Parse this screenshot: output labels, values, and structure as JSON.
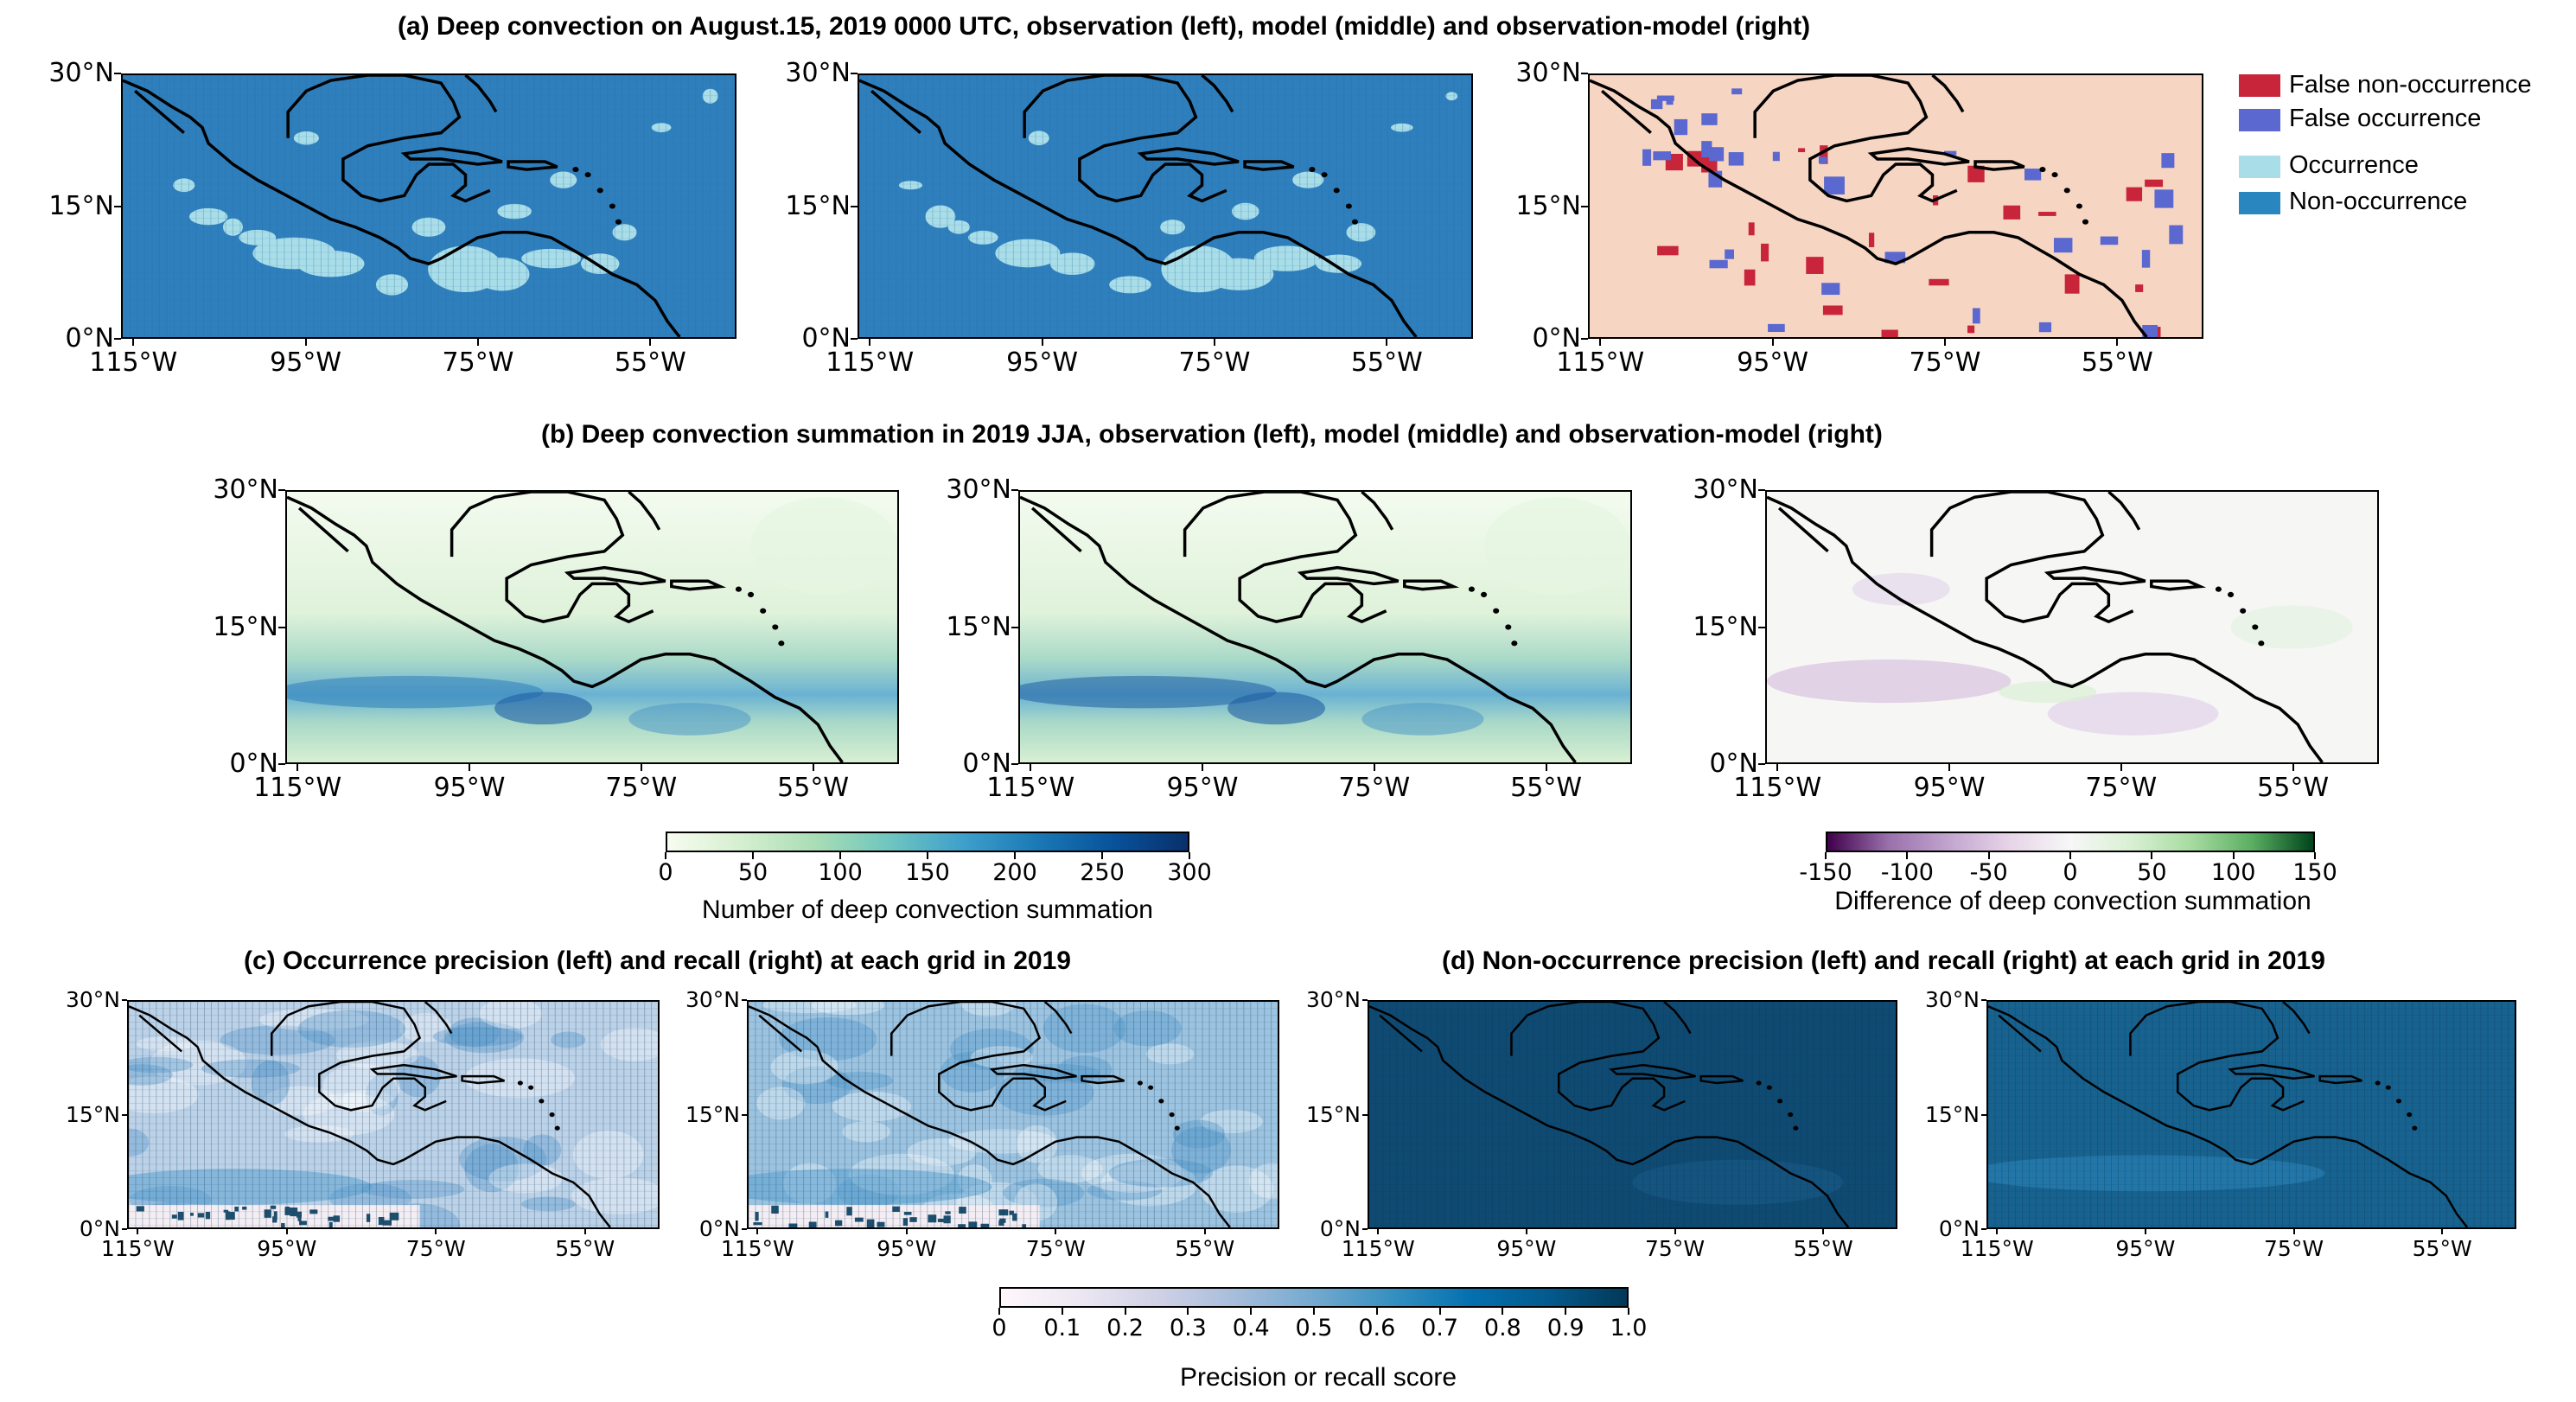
{
  "titles": {
    "a": "(a) Deep convection on August.15, 2019 0000 UTC, observation (left), model (middle) and observation-model (right)",
    "b": "(b) Deep convection summation in 2019 JJA, observation (left), model (middle) and observation-model (right)",
    "c": "(c) Occurrence precision (left) and recall (right) at each grid in 2019",
    "d": "(d) Non-occurrence precision (left) and recall (right) at each grid in 2019"
  },
  "axes": {
    "lat_labels": [
      "30°N",
      "15°N",
      "0°N"
    ],
    "lon_labels": [
      "115°W",
      "95°W",
      "75°W",
      "55°W"
    ]
  },
  "legend": {
    "items": [
      {
        "label": "False non-occurrence",
        "color": "#c8243a"
      },
      {
        "label": "False occurrence",
        "color": "#5a68cf"
      },
      {
        "label": "Occurrence",
        "color": "#a9dde8"
      },
      {
        "label": "Non-occurrence",
        "color": "#2a86bf"
      }
    ]
  },
  "colorbars": {
    "count": {
      "label": "Number of deep convection summation",
      "ticks": [
        "0",
        "50",
        "100",
        "150",
        "200",
        "250",
        "300"
      ],
      "range": [
        0,
        300
      ]
    },
    "diff": {
      "label": "Difference of deep convection summation",
      "ticks": [
        "-150",
        "-100",
        "-50",
        "0",
        "50",
        "100",
        "150"
      ],
      "range": [
        -150,
        150
      ]
    },
    "score": {
      "label": "Precision or recall score",
      "ticks": [
        "0",
        "0.1",
        "0.2",
        "0.3",
        "0.4",
        "0.5",
        "0.6",
        "0.7",
        "0.8",
        "0.9",
        "1.0"
      ],
      "range": [
        0,
        1
      ]
    }
  },
  "colors": {
    "occurrence_fill": "#2f7fbd",
    "occurrence_patch": "#a9dde8",
    "diff_background": "#f6d5c3",
    "count_low": "#e9f6e4",
    "count_high": "#1f5fa3",
    "score_high": "#0c3f63"
  },
  "chart_data": [
    {
      "panel": "a-left",
      "type": "heatmap",
      "lat_range": [
        0,
        30
      ],
      "lon_range": [
        -120,
        -50
      ]
    },
    {
      "panel": "a-middle",
      "type": "heatmap",
      "lat_range": [
        0,
        30
      ],
      "lon_range": [
        -120,
        -50
      ]
    },
    {
      "panel": "a-right",
      "type": "heatmap",
      "lat_range": [
        0,
        30
      ],
      "lon_range": [
        -120,
        -50
      ]
    },
    {
      "panel": "b-left",
      "type": "heatmap",
      "lat_range": [
        0,
        30
      ],
      "lon_range": [
        -116,
        -45
      ],
      "vlim": [
        0,
        300
      ]
    },
    {
      "panel": "b-middle",
      "type": "heatmap",
      "lat_range": [
        0,
        30
      ],
      "lon_range": [
        -116,
        -45
      ],
      "vlim": [
        0,
        300
      ]
    },
    {
      "panel": "b-right",
      "type": "heatmap",
      "lat_range": [
        0,
        30
      ],
      "lon_range": [
        -116,
        -45
      ],
      "vlim": [
        -150,
        150
      ]
    },
    {
      "panel": "c-left",
      "type": "heatmap",
      "lat_range": [
        0,
        30
      ],
      "lon_range": [
        -118,
        -45
      ],
      "vlim": [
        0,
        1
      ]
    },
    {
      "panel": "c-right",
      "type": "heatmap",
      "lat_range": [
        0,
        30
      ],
      "lon_range": [
        -118,
        -45
      ],
      "vlim": [
        0,
        1
      ]
    },
    {
      "panel": "d-left",
      "type": "heatmap",
      "lat_range": [
        0,
        30
      ],
      "lon_range": [
        -118,
        -45
      ],
      "vlim": [
        0,
        1
      ]
    },
    {
      "panel": "d-right",
      "type": "heatmap",
      "lat_range": [
        0,
        30
      ],
      "lon_range": [
        -118,
        -45
      ],
      "vlim": [
        0,
        1
      ]
    }
  ]
}
